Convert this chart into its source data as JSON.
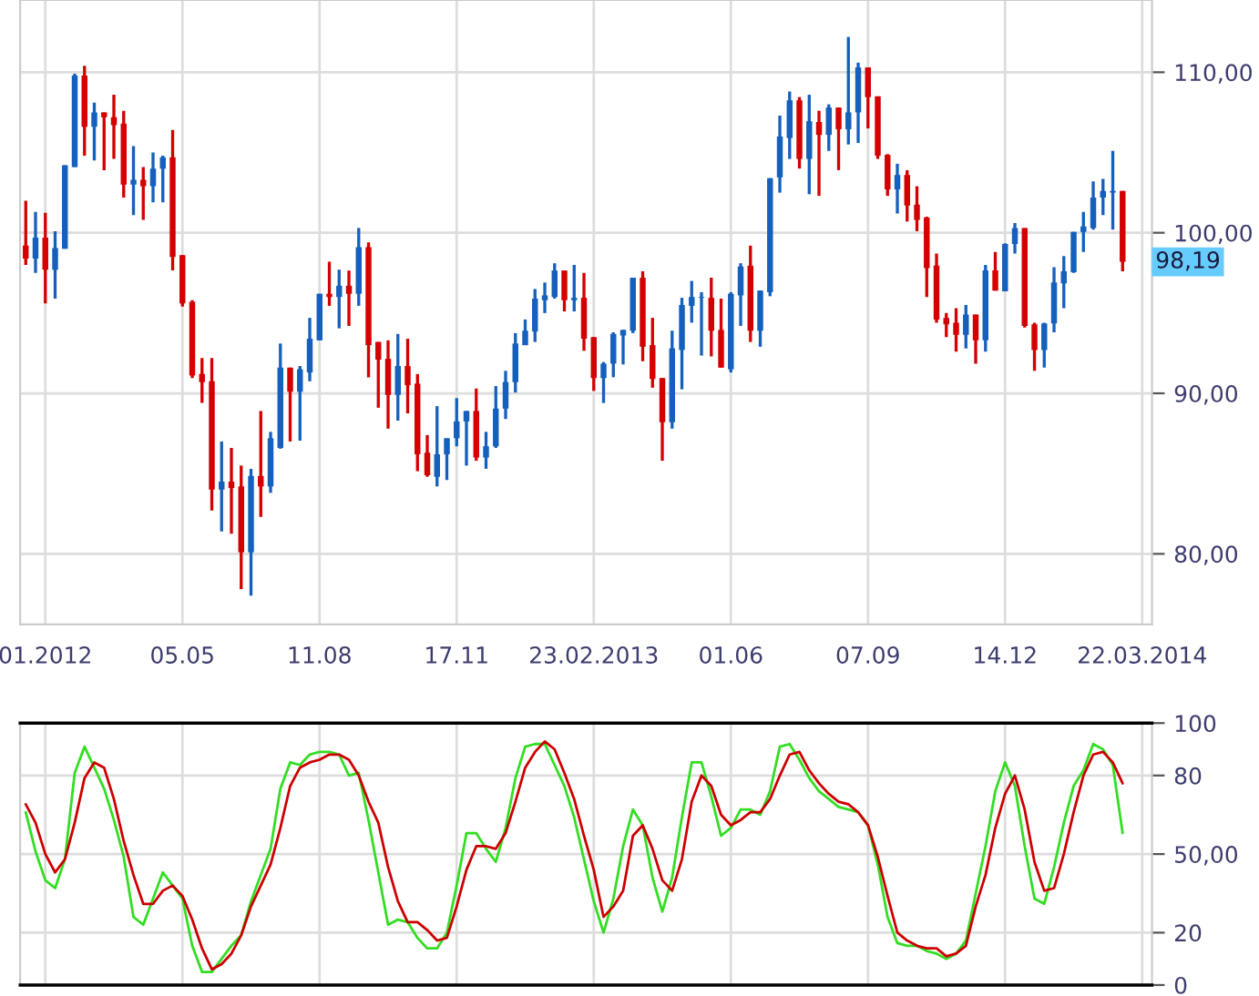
{
  "chart_data": [
    {
      "type": "candlestick",
      "x": [
        "2012-01-14",
        "2012-01-21",
        "2012-01-28",
        "2012-02-04",
        "2012-02-11",
        "2012-02-18",
        "2012-02-25",
        "2012-03-03",
        "2012-03-10",
        "2012-03-17",
        "2012-03-24",
        "2012-03-31",
        "2012-04-07",
        "2012-04-14",
        "2012-04-21",
        "2012-04-28",
        "2012-05-05",
        "2012-05-12",
        "2012-05-19",
        "2012-05-26",
        "2012-06-02",
        "2012-06-09",
        "2012-06-16",
        "2012-06-23",
        "2012-06-30",
        "2012-07-07",
        "2012-07-14",
        "2012-07-21",
        "2012-07-28",
        "2012-08-04",
        "2012-08-11",
        "2012-08-18",
        "2012-08-25",
        "2012-09-01",
        "2012-09-08",
        "2012-09-15",
        "2012-09-22",
        "2012-09-29",
        "2012-10-06",
        "2012-10-13",
        "2012-10-20",
        "2012-10-27",
        "2012-11-03",
        "2012-11-10",
        "2012-11-17",
        "2012-11-24",
        "2012-12-01",
        "2012-12-08",
        "2012-12-15",
        "2012-12-22",
        "2012-12-29",
        "2013-01-05",
        "2013-01-12",
        "2013-01-19",
        "2013-01-26",
        "2013-02-02",
        "2013-02-09",
        "2013-02-16",
        "2013-02-23",
        "2013-03-02",
        "2013-03-09",
        "2013-03-16",
        "2013-03-23",
        "2013-03-30",
        "2013-04-06",
        "2013-04-13",
        "2013-04-20",
        "2013-04-27",
        "2013-05-04",
        "2013-05-11",
        "2013-05-18",
        "2013-05-25",
        "2013-06-01",
        "2013-06-08",
        "2013-06-15",
        "2013-06-22",
        "2013-06-29",
        "2013-07-06",
        "2013-07-13",
        "2013-07-20",
        "2013-07-27",
        "2013-08-03",
        "2013-08-10",
        "2013-08-17",
        "2013-08-24",
        "2013-08-31",
        "2013-09-07",
        "2013-09-14",
        "2013-09-21",
        "2013-09-28",
        "2013-10-05",
        "2013-10-12",
        "2013-10-19",
        "2013-10-26",
        "2013-11-02",
        "2013-11-09",
        "2013-11-16",
        "2013-11-23",
        "2013-11-30",
        "2013-12-07",
        "2013-12-14",
        "2013-12-21",
        "2013-12-28",
        "2014-01-04",
        "2014-01-11",
        "2014-01-18",
        "2014-01-25",
        "2014-02-01",
        "2014-02-08",
        "2014-02-15",
        "2014-02-22",
        "2014-03-01",
        "2014-03-08"
      ],
      "ohlc": [
        [
          99.2,
          102.0,
          98.0,
          98.4
        ],
        [
          98.4,
          101.3,
          97.5,
          99.7
        ],
        [
          99.7,
          101.25,
          95.6,
          97.7
        ],
        [
          97.7,
          100.1,
          95.9,
          99.05
        ],
        [
          99.0,
          104.2,
          99.0,
          104.2
        ],
        [
          104.1,
          109.9,
          104.1,
          109.8
        ],
        [
          109.8,
          110.4,
          104.8,
          106.6
        ],
        [
          106.6,
          108.1,
          104.5,
          107.5
        ],
        [
          107.5,
          107.5,
          103.9,
          107.2
        ],
        [
          107.2,
          108.6,
          104.6,
          106.7
        ],
        [
          106.8,
          107.6,
          102.2,
          103.0
        ],
        [
          103.0,
          105.4,
          101.1,
          103.3
        ],
        [
          103.3,
          104.1,
          100.8,
          102.9
        ],
        [
          102.9,
          105.0,
          101.9,
          104.0
        ],
        [
          104.0,
          104.8,
          101.9,
          104.7
        ],
        [
          104.7,
          106.4,
          97.65,
          98.5
        ],
        [
          98.6,
          98.6,
          95.4,
          95.6
        ],
        [
          95.7,
          95.8,
          90.95,
          91.1
        ],
        [
          91.2,
          92.2,
          89.4,
          90.7
        ],
        [
          90.75,
          92.2,
          82.7,
          84.0
        ],
        [
          84.0,
          87.0,
          81.4,
          84.5
        ],
        [
          84.5,
          86.6,
          81.25,
          84.1
        ],
        [
          84.2,
          85.5,
          77.8,
          80.1
        ],
        [
          80.1,
          85.3,
          77.4,
          84.85
        ],
        [
          84.85,
          88.9,
          82.3,
          84.2
        ],
        [
          84.2,
          87.6,
          83.8,
          87.2
        ],
        [
          86.6,
          93.1,
          86.55,
          91.6
        ],
        [
          91.6,
          91.6,
          87.0,
          90.1
        ],
        [
          90.1,
          91.7,
          87.05,
          91.5
        ],
        [
          91.3,
          94.7,
          90.75,
          93.4
        ],
        [
          93.3,
          96.2,
          93.3,
          96.2
        ],
        [
          96.2,
          98.2,
          95.45,
          96.0
        ],
        [
          96.0,
          97.7,
          94.05,
          96.7
        ],
        [
          96.7,
          97.65,
          94.2,
          96.2
        ],
        [
          96.2,
          100.3,
          95.45,
          99.1
        ],
        [
          99.1,
          99.4,
          91.0,
          93.0
        ],
        [
          93.2,
          93.2,
          89.1,
          92.1
        ],
        [
          92.15,
          93.3,
          87.8,
          89.9
        ],
        [
          89.9,
          93.7,
          88.3,
          91.7
        ],
        [
          91.7,
          93.4,
          88.75,
          90.5
        ],
        [
          90.6,
          91.2,
          85.15,
          86.2
        ],
        [
          86.3,
          87.4,
          84.8,
          84.9
        ],
        [
          84.8,
          89.2,
          84.2,
          86.2
        ],
        [
          86.2,
          87.2,
          84.6,
          87.2
        ],
        [
          87.2,
          89.7,
          86.7,
          88.25
        ],
        [
          88.25,
          88.9,
          85.5,
          88.9
        ],
        [
          88.9,
          90.3,
          85.8,
          86.0
        ],
        [
          86.0,
          87.6,
          85.3,
          86.7
        ],
        [
          86.7,
          90.45,
          86.6,
          89.05
        ],
        [
          89.05,
          91.4,
          88.4,
          90.7
        ],
        [
          90.7,
          93.75,
          90.05,
          93.1
        ],
        [
          93.0,
          94.6,
          93.0,
          93.9
        ],
        [
          93.85,
          96.5,
          93.2,
          95.9
        ],
        [
          95.8,
          96.9,
          95.0,
          96.1
        ],
        [
          96.0,
          98.1,
          95.9,
          97.65
        ],
        [
          97.65,
          97.65,
          95.1,
          95.8
        ],
        [
          95.8,
          98.0,
          95.1,
          95.95
        ],
        [
          95.95,
          97.5,
          92.65,
          93.4
        ],
        [
          93.5,
          93.5,
          90.15,
          90.95
        ],
        [
          90.95,
          91.95,
          89.4,
          91.85
        ],
        [
          91.85,
          93.8,
          91.0,
          93.7
        ],
        [
          93.6,
          93.95,
          91.8,
          93.95
        ],
        [
          93.9,
          97.2,
          93.75,
          97.2
        ],
        [
          97.2,
          97.6,
          92.0,
          92.9
        ],
        [
          93.0,
          94.7,
          90.35,
          90.9
        ],
        [
          90.95,
          90.95,
          85.8,
          88.2
        ],
        [
          88.2,
          93.9,
          87.8,
          92.8
        ],
        [
          92.7,
          95.95,
          90.25,
          95.5
        ],
        [
          95.45,
          97.0,
          94.4,
          96.0
        ],
        [
          95.95,
          96.3,
          92.35,
          96.0
        ],
        [
          95.95,
          97.2,
          92.3,
          93.9
        ],
        [
          93.95,
          95.9,
          91.6,
          91.6
        ],
        [
          91.5,
          96.3,
          91.3,
          96.2
        ],
        [
          96.1,
          98.1,
          94.2,
          97.9
        ],
        [
          97.95,
          99.2,
          93.2,
          93.9
        ],
        [
          93.9,
          96.4,
          92.9,
          96.4
        ],
        [
          96.3,
          103.4,
          96.05,
          103.4
        ],
        [
          103.45,
          107.3,
          102.5,
          106.0
        ],
        [
          105.9,
          108.8,
          104.6,
          108.25
        ],
        [
          108.25,
          108.45,
          104.0,
          104.6
        ],
        [
          104.6,
          108.6,
          102.4,
          106.95
        ],
        [
          106.9,
          107.6,
          102.3,
          106.1
        ],
        [
          106.1,
          108.0,
          105.1,
          107.8
        ],
        [
          107.8,
          107.8,
          103.9,
          106.45
        ],
        [
          106.45,
          112.2,
          105.5,
          107.5
        ],
        [
          107.5,
          110.6,
          105.6,
          110.3
        ],
        [
          110.3,
          110.3,
          106.5,
          108.45
        ],
        [
          108.5,
          108.5,
          104.6,
          104.8
        ],
        [
          104.85,
          104.9,
          102.3,
          102.7
        ],
        [
          102.7,
          104.3,
          101.2,
          103.6
        ],
        [
          103.6,
          103.9,
          100.7,
          101.7
        ],
        [
          101.75,
          102.9,
          100.1,
          100.8
        ],
        [
          100.95,
          101.0,
          96.0,
          97.8
        ],
        [
          97.95,
          98.7,
          94.4,
          94.6
        ],
        [
          94.7,
          95.0,
          93.5,
          94.3
        ],
        [
          94.4,
          95.3,
          92.6,
          93.65
        ],
        [
          93.65,
          95.5,
          92.8,
          94.9
        ],
        [
          94.9,
          94.9,
          91.85,
          93.3
        ],
        [
          93.3,
          98.0,
          92.6,
          97.65
        ],
        [
          97.65,
          98.8,
          96.4,
          96.4
        ],
        [
          96.35,
          99.35,
          96.35,
          99.3
        ],
        [
          99.3,
          100.6,
          98.7,
          100.3
        ],
        [
          100.3,
          100.3,
          94.1,
          94.2
        ],
        [
          94.3,
          94.4,
          91.4,
          92.7
        ],
        [
          92.7,
          94.4,
          91.6,
          94.35
        ],
        [
          94.35,
          97.85,
          93.8,
          96.9
        ],
        [
          96.85,
          98.55,
          95.3,
          97.6
        ],
        [
          97.55,
          100.05,
          97.5,
          100.05
        ],
        [
          100.05,
          101.3,
          98.8,
          100.4
        ],
        [
          100.3,
          103.2,
          100.2,
          102.2
        ],
        [
          102.2,
          103.35,
          101.1,
          102.6
        ],
        [
          102.5,
          105.1,
          100.2,
          102.6
        ],
        [
          102.6,
          102.6,
          97.6,
          98.19
        ]
      ],
      "colors": [
        "#d40000",
        "#1560bd",
        "#d40000",
        "#1560bd",
        "#1560bd",
        "#1560bd",
        "#d40000",
        "#1560bd",
        "#d40000",
        "#d40000",
        "#d40000",
        "#1560bd",
        "#d40000",
        "#1560bd",
        "#1560bd",
        "#d40000",
        "#d40000",
        "#d40000",
        "#d40000",
        "#d40000",
        "#1560bd",
        "#d40000",
        "#d40000",
        "#1560bd",
        "#d40000",
        "#1560bd",
        "#1560bd",
        "#d40000",
        "#1560bd",
        "#1560bd",
        "#1560bd",
        "#d40000",
        "#1560bd",
        "#d40000",
        "#1560bd",
        "#d40000",
        "#d40000",
        "#d40000",
        "#1560bd",
        "#d40000",
        "#d40000",
        "#d40000",
        "#1560bd",
        "#1560bd",
        "#1560bd",
        "#1560bd",
        "#d40000",
        "#1560bd",
        "#1560bd",
        "#1560bd",
        "#1560bd",
        "#1560bd",
        "#1560bd",
        "#1560bd",
        "#1560bd",
        "#d40000",
        "#1560bd",
        "#d40000",
        "#d40000",
        "#1560bd",
        "#1560bd",
        "#1560bd",
        "#1560bd",
        "#d40000",
        "#d40000",
        "#d40000",
        "#1560bd",
        "#1560bd",
        "#1560bd",
        "#1560bd",
        "#d40000",
        "#d40000",
        "#1560bd",
        "#1560bd",
        "#d40000",
        "#1560bd",
        "#1560bd",
        "#1560bd",
        "#1560bd",
        "#d40000",
        "#1560bd",
        "#d40000",
        "#1560bd",
        "#d40000",
        "#1560bd",
        "#1560bd",
        "#d40000",
        "#d40000",
        "#d40000",
        "#1560bd",
        "#d40000",
        "#d40000",
        "#d40000",
        "#d40000",
        "#d40000",
        "#d40000",
        "#1560bd",
        "#d40000",
        "#1560bd",
        "#d40000",
        "#1560bd",
        "#1560bd",
        "#d40000",
        "#d40000",
        "#1560bd",
        "#1560bd",
        "#1560bd",
        "#1560bd",
        "#1560bd",
        "#1560bd",
        "#1560bd",
        "#1560bd",
        "#d40000"
      ],
      "xlim": [
        "2012-01-10",
        "2014-03-29"
      ],
      "xticks": [
        {
          "value": "2012-01-28",
          "label": "01.2012"
        },
        {
          "value": "2012-05-05",
          "label": "05.05"
        },
        {
          "value": "2012-08-11",
          "label": "11.08"
        },
        {
          "value": "2012-11-17",
          "label": "17.11"
        },
        {
          "value": "2013-02-23",
          "label": "23.02.2013"
        },
        {
          "value": "2013-06-01",
          "label": "01.06"
        },
        {
          "value": "2013-09-07",
          "label": "07.09"
        },
        {
          "value": "2013-12-14",
          "label": "14.12"
        },
        {
          "value": "2014-03-22",
          "label": "22.03.2014"
        }
      ],
      "ylim": [
        75.6,
        114.5
      ],
      "yticks": [
        {
          "value": 80,
          "label": "80,00"
        },
        {
          "value": 90,
          "label": "90,00"
        },
        {
          "value": 100,
          "label": "100,00"
        },
        {
          "value": 110,
          "label": "110,00"
        }
      ],
      "annotations": [
        {
          "text": "98,19",
          "x": "2014-03-08",
          "y": 98.19
        }
      ],
      "grid": true
    },
    {
      "type": "line",
      "x": [
        "2012-01-14",
        "2012-01-21",
        "2012-01-28",
        "2012-02-04",
        "2012-02-11",
        "2012-02-18",
        "2012-02-25",
        "2012-03-03",
        "2012-03-10",
        "2012-03-17",
        "2012-03-24",
        "2012-03-31",
        "2012-04-07",
        "2012-04-14",
        "2012-04-21",
        "2012-04-28",
        "2012-05-05",
        "2012-05-12",
        "2012-05-19",
        "2012-05-26",
        "2012-06-02",
        "2012-06-09",
        "2012-06-16",
        "2012-06-23",
        "2012-06-30",
        "2012-07-07",
        "2012-07-14",
        "2012-07-21",
        "2012-07-28",
        "2012-08-04",
        "2012-08-11",
        "2012-08-18",
        "2012-08-25",
        "2012-09-01",
        "2012-09-08",
        "2012-09-15",
        "2012-09-22",
        "2012-09-29",
        "2012-10-06",
        "2012-10-13",
        "2012-10-20",
        "2012-10-27",
        "2012-11-03",
        "2012-11-10",
        "2012-11-17",
        "2012-11-24",
        "2012-12-01",
        "2012-12-08",
        "2012-12-15",
        "2012-12-22",
        "2012-12-29",
        "2013-01-05",
        "2013-01-12",
        "2013-01-19",
        "2013-01-26",
        "2013-02-02",
        "2013-02-09",
        "2013-02-16",
        "2013-02-23",
        "2013-03-02",
        "2013-03-09",
        "2013-03-16",
        "2013-03-23",
        "2013-03-30",
        "2013-04-06",
        "2013-04-13",
        "2013-04-20",
        "2013-04-27",
        "2013-05-04",
        "2013-05-11",
        "2013-05-18",
        "2013-05-25",
        "2013-06-01",
        "2013-06-08",
        "2013-06-15",
        "2013-06-22",
        "2013-06-29",
        "2013-07-06",
        "2013-07-13",
        "2013-07-20",
        "2013-07-27",
        "2013-08-03",
        "2013-08-10",
        "2013-08-17",
        "2013-08-24",
        "2013-08-31",
        "2013-09-07",
        "2013-09-14",
        "2013-09-21",
        "2013-09-28",
        "2013-10-05",
        "2013-10-12",
        "2013-10-19",
        "2013-10-26",
        "2013-11-02",
        "2013-11-09",
        "2013-11-16",
        "2013-11-23",
        "2013-11-30",
        "2013-12-07",
        "2013-12-14",
        "2013-12-21",
        "2013-12-28",
        "2014-01-04",
        "2014-01-11",
        "2014-01-18",
        "2014-01-25",
        "2014-02-01",
        "2014-02-08",
        "2014-02-15",
        "2014-02-22",
        "2014-03-01",
        "2014-03-08"
      ],
      "series": [
        {
          "color": "#33dd22",
          "values": [
            66,
            51,
            40,
            37,
            48,
            81,
            91,
            83,
            75,
            63,
            49,
            26,
            23,
            33,
            43,
            38,
            33,
            15,
            5,
            5,
            10,
            15,
            19,
            32,
            42,
            52,
            75,
            85,
            84,
            88,
            89,
            89,
            88,
            80,
            81,
            63,
            43,
            23,
            25,
            24,
            18,
            14,
            14,
            20,
            38,
            58,
            58,
            52,
            47,
            60,
            79,
            91,
            92,
            92,
            84,
            76,
            64,
            48,
            32,
            20,
            33,
            53,
            67,
            61,
            41,
            28,
            41,
            64,
            85,
            85,
            72,
            57,
            60,
            67,
            67,
            65,
            74,
            91,
            92,
            86,
            79,
            74,
            71,
            68,
            67,
            66,
            61,
            46,
            26,
            16,
            15,
            15,
            13,
            12,
            10,
            12,
            17,
            35,
            53,
            74,
            85,
            76,
            53,
            33,
            31,
            45,
            62,
            76,
            82,
            92,
            90,
            84,
            58
          ]
        },
        {
          "color": "#cc0000",
          "values": [
            69,
            62,
            50,
            43,
            48,
            62,
            79,
            85,
            83,
            71,
            55,
            42,
            31,
            31,
            36,
            38,
            34,
            25,
            14,
            6,
            8,
            12,
            19,
            30,
            38,
            46,
            60,
            76,
            83,
            85,
            86,
            88,
            88,
            86,
            80,
            70,
            62,
            45,
            32,
            24,
            24,
            21,
            17,
            18,
            30,
            44,
            53,
            53,
            52,
            58,
            70,
            83,
            89,
            93,
            90,
            81,
            71,
            57,
            44,
            26,
            30,
            36,
            57,
            61,
            52,
            40,
            36,
            48,
            70,
            80,
            76,
            65,
            61,
            63,
            66,
            66,
            71,
            80,
            88,
            89,
            82,
            77,
            73,
            70,
            69,
            66,
            61,
            49,
            34,
            20,
            17,
            15,
            14,
            14,
            11,
            12,
            15,
            30,
            42,
            60,
            73,
            80,
            67,
            47,
            36,
            37,
            50,
            66,
            80,
            88,
            89,
            85,
            77
          ]
        }
      ],
      "xlim": [
        "2012-01-10",
        "2014-03-29"
      ],
      "xticks": [
        {
          "value": "2012-01-28",
          "label": null
        },
        {
          "value": "2012-05-05",
          "label": null
        },
        {
          "value": "2012-08-11",
          "label": null
        },
        {
          "value": "2012-11-17",
          "label": null
        },
        {
          "value": "2013-02-23",
          "label": null
        },
        {
          "value": "2013-06-01",
          "label": null
        },
        {
          "value": "2013-09-07",
          "label": null
        },
        {
          "value": "2013-12-14",
          "label": null
        },
        {
          "value": "2014-03-22",
          "label": null
        }
      ],
      "ylim": [
        0,
        100
      ],
      "yticks": [
        0,
        20,
        {
          "value": 50,
          "label": "50,00"
        },
        80,
        100
      ],
      "tick_labels": "y",
      "marker": "none",
      "line_style": "solid",
      "grid": true
    }
  ]
}
